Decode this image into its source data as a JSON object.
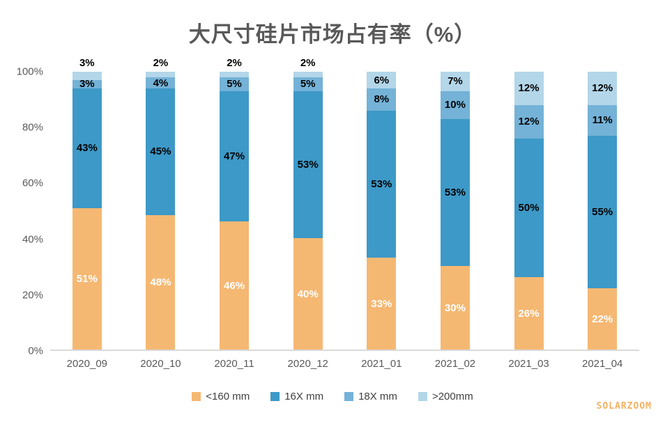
{
  "chart_data": {
    "type": "bar",
    "stacked": true,
    "title": "大尺寸硅片市场占有率（%）",
    "categories": [
      "2020_09",
      "2020_10",
      "2020_11",
      "2020_12",
      "2021_01",
      "2021_02",
      "2021_03",
      "2021_04"
    ],
    "series": [
      {
        "name": "<160 mm",
        "color": "#F5B873",
        "label_color": "#FFFFFF",
        "values": [
          51,
          48,
          46,
          40,
          33,
          30,
          26,
          22
        ]
      },
      {
        "name": "16X mm",
        "color": "#3D99C7",
        "label_color": "#000000",
        "values": [
          43,
          45,
          47,
          53,
          53,
          53,
          50,
          55
        ]
      },
      {
        "name": "18X mm",
        "color": "#74B2D7",
        "label_color": "#000000",
        "values": [
          3,
          4,
          5,
          5,
          8,
          10,
          12,
          11
        ]
      },
      {
        "name": ">200mm",
        "color": "#B3D6E9",
        "label_color": "#000000",
        "values": [
          3,
          2,
          2,
          2,
          6,
          7,
          12,
          12
        ]
      }
    ],
    "value_suffix": "%",
    "y_ticks": [
      "100%",
      "80%",
      "60%",
      "40%",
      "20%",
      "0%"
    ],
    "ylim": [
      0,
      100
    ],
    "grid": false,
    "legend_position": "bottom",
    "outside_top_label_max_pct": 5,
    "title_color": "#595959",
    "tick_color": "#595959",
    "axis_line_color": "#D9D9D9"
  },
  "watermark": {
    "text": "SOLARZOOM",
    "color": "#F5B163"
  }
}
